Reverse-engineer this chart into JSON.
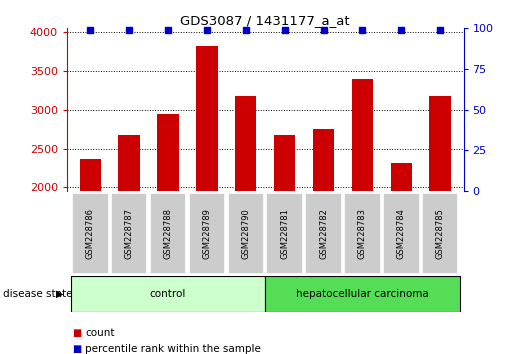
{
  "title": "GDS3087 / 1431177_a_at",
  "categories": [
    "GSM228786",
    "GSM228787",
    "GSM228788",
    "GSM228789",
    "GSM228790",
    "GSM228781",
    "GSM228782",
    "GSM228783",
    "GSM228784",
    "GSM228785"
  ],
  "bar_values": [
    2370,
    2670,
    2950,
    3820,
    3180,
    2680,
    2750,
    3400,
    2310,
    3180
  ],
  "percentile_values": [
    99,
    99,
    99,
    99,
    99,
    99,
    99,
    99,
    99,
    99
  ],
  "bar_color": "#cc0000",
  "dot_color": "#0000cc",
  "ylim_left": [
    1950,
    4050
  ],
  "ylim_right": [
    0,
    100
  ],
  "yticks_left": [
    2000,
    2500,
    3000,
    3500,
    4000
  ],
  "yticks_right": [
    0,
    25,
    50,
    75,
    100
  ],
  "control_count": 5,
  "disease_labels": [
    "control",
    "hepatocellular carcinoma"
  ],
  "control_color": "#ccffcc",
  "carcinoma_color": "#55dd55",
  "tick_bg_color": "#cccccc",
  "legend_count_label": "count",
  "legend_pct_label": "percentile rank within the sample",
  "disease_state_label": "disease state",
  "figsize": [
    5.15,
    3.54
  ],
  "dpi": 100
}
